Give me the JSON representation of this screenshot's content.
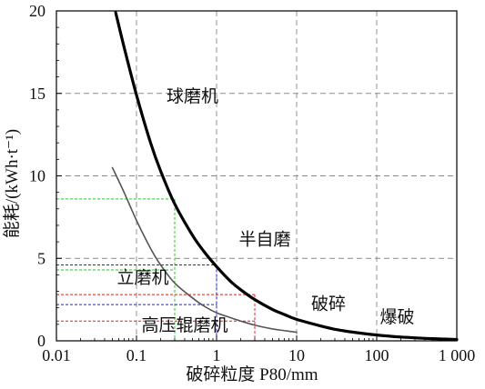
{
  "chart_data": {
    "type": "line",
    "title": "",
    "xlabel": "破碎粒度 P80/mm",
    "ylabel": "能耗/(kWh·t⁻¹)",
    "xscale": "log",
    "xlim": [
      0.01,
      1000
    ],
    "ylim": [
      0,
      20
    ],
    "xticks": [
      {
        "value": 0.01,
        "label": "0.01"
      },
      {
        "value": 0.1,
        "label": "0.1"
      },
      {
        "value": 1,
        "label": "1"
      },
      {
        "value": 10,
        "label": "10"
      },
      {
        "value": 100,
        "label": "100"
      },
      {
        "value": 1000,
        "label": "1 000"
      }
    ],
    "yticks": [
      {
        "value": 0,
        "label": "0"
      },
      {
        "value": 5,
        "label": "5"
      },
      {
        "value": 10,
        "label": "10"
      },
      {
        "value": 15,
        "label": "15"
      },
      {
        "value": 20,
        "label": "20"
      }
    ],
    "grid": true,
    "series": [
      {
        "key": "thick",
        "color": "#000000",
        "x": [
          0.055,
          0.07,
          0.1,
          0.15,
          0.2,
          0.3,
          0.5,
          0.7,
          1,
          1.5,
          2,
          3,
          5,
          7,
          10,
          20,
          30,
          50,
          100,
          200,
          500,
          1000
        ],
        "y": [
          19.9,
          17.8,
          14.9,
          12.0,
          10.3,
          8.3,
          6.4,
          5.4,
          4.5,
          3.6,
          3.1,
          2.5,
          1.9,
          1.6,
          1.3,
          0.9,
          0.7,
          0.53,
          0.35,
          0.23,
          0.13,
          0.08
        ]
      },
      {
        "key": "thin",
        "color": "#555555",
        "x": [
          0.05,
          0.07,
          0.1,
          0.15,
          0.2,
          0.3,
          0.5,
          0.7,
          1,
          1.5,
          2,
          3,
          5,
          7,
          10
        ],
        "y": [
          10.5,
          9.0,
          7.3,
          5.6,
          4.6,
          3.5,
          2.6,
          2.1,
          1.7,
          1.4,
          1.2,
          0.95,
          0.72,
          0.62,
          0.52
        ]
      }
    ],
    "annotations": [
      {
        "text": "球磨机",
        "x": 0.5,
        "y": 14.5
      },
      {
        "text": "半自磨",
        "x": 4.0,
        "y": 5.8
      },
      {
        "text": "立磨机",
        "x": 0.12,
        "y": 3.5
      },
      {
        "text": "高压辊磨机",
        "x": 0.4,
        "y": 0.6
      },
      {
        "text": "破碎",
        "x": 25,
        "y": 1.9
      },
      {
        "text": "爆破",
        "x": 180,
        "y": 1.1
      }
    ],
    "reference_lines": [
      {
        "color": "#22cc22",
        "x": 0.3,
        "y": [
          8.6,
          4.3
        ]
      },
      {
        "color": "#2222dd",
        "x": 1.0,
        "y": [
          4.6,
          2.2
        ]
      },
      {
        "color": "#dd2222",
        "x": 3.0,
        "y": [
          2.8,
          1.2
        ]
      }
    ]
  }
}
